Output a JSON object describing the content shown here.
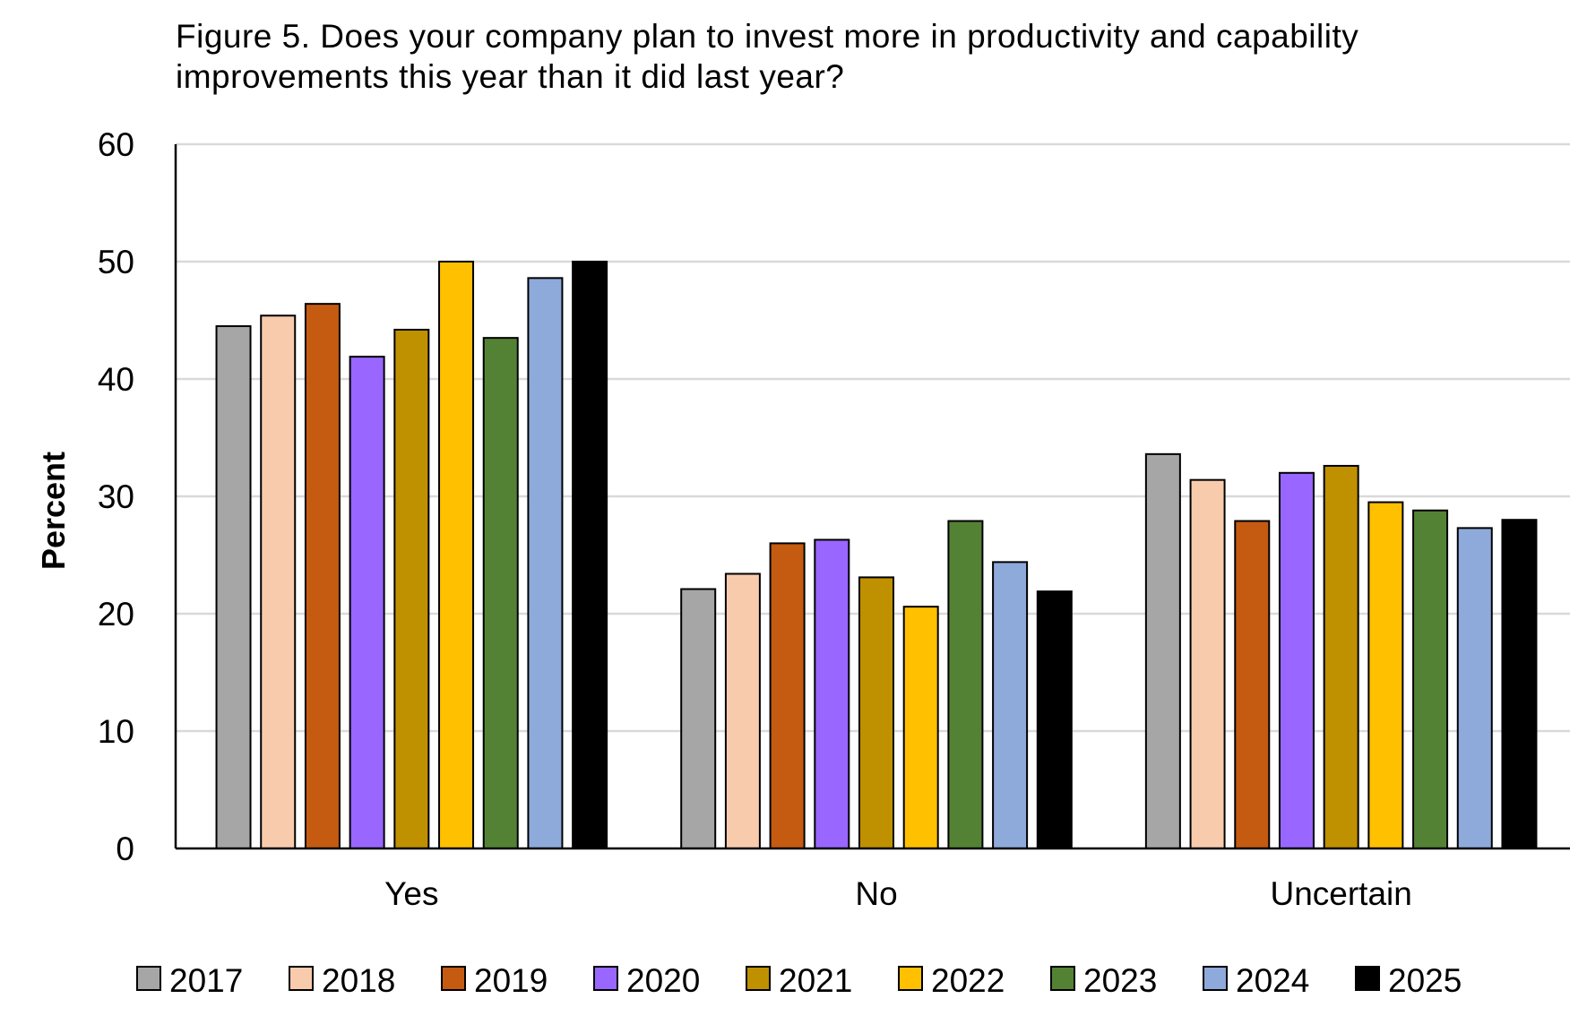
{
  "title_lines": [
    "Figure 5. Does your company plan to invest more in productivity and capability",
    "improvements this year than it did last year?"
  ],
  "chart_data": {
    "type": "bar",
    "title": "Figure 5. Does your company plan to invest more in productivity and capability improvements this year than it did last year?",
    "xlabel": "",
    "ylabel": "Percent",
    "ylim": [
      0,
      60
    ],
    "yticks": [
      0,
      10,
      20,
      30,
      40,
      50,
      60
    ],
    "grid": true,
    "legend_position": "bottom",
    "categories": [
      "Yes",
      "No",
      "Uncertain"
    ],
    "series": [
      {
        "name": "2017",
        "color": "#a6a6a6",
        "values": [
          44.5,
          22.1,
          33.6
        ]
      },
      {
        "name": "2018",
        "color": "#f8cbad",
        "values": [
          45.4,
          23.4,
          31.4
        ]
      },
      {
        "name": "2019",
        "color": "#c55a11",
        "values": [
          46.4,
          26.0,
          27.9
        ]
      },
      {
        "name": "2020",
        "color": "#9966ff",
        "values": [
          41.9,
          26.3,
          32.0
        ]
      },
      {
        "name": "2021",
        "color": "#bf9000",
        "values": [
          44.2,
          23.1,
          32.6
        ]
      },
      {
        "name": "2022",
        "color": "#ffc000",
        "values": [
          50.0,
          20.6,
          29.5
        ]
      },
      {
        "name": "2023",
        "color": "#548235",
        "values": [
          43.5,
          27.9,
          28.8
        ]
      },
      {
        "name": "2024",
        "color": "#8eaadb",
        "values": [
          48.6,
          24.4,
          27.3
        ]
      },
      {
        "name": "2025",
        "color": "#000000",
        "values": [
          50.0,
          21.9,
          28.0
        ]
      }
    ]
  }
}
